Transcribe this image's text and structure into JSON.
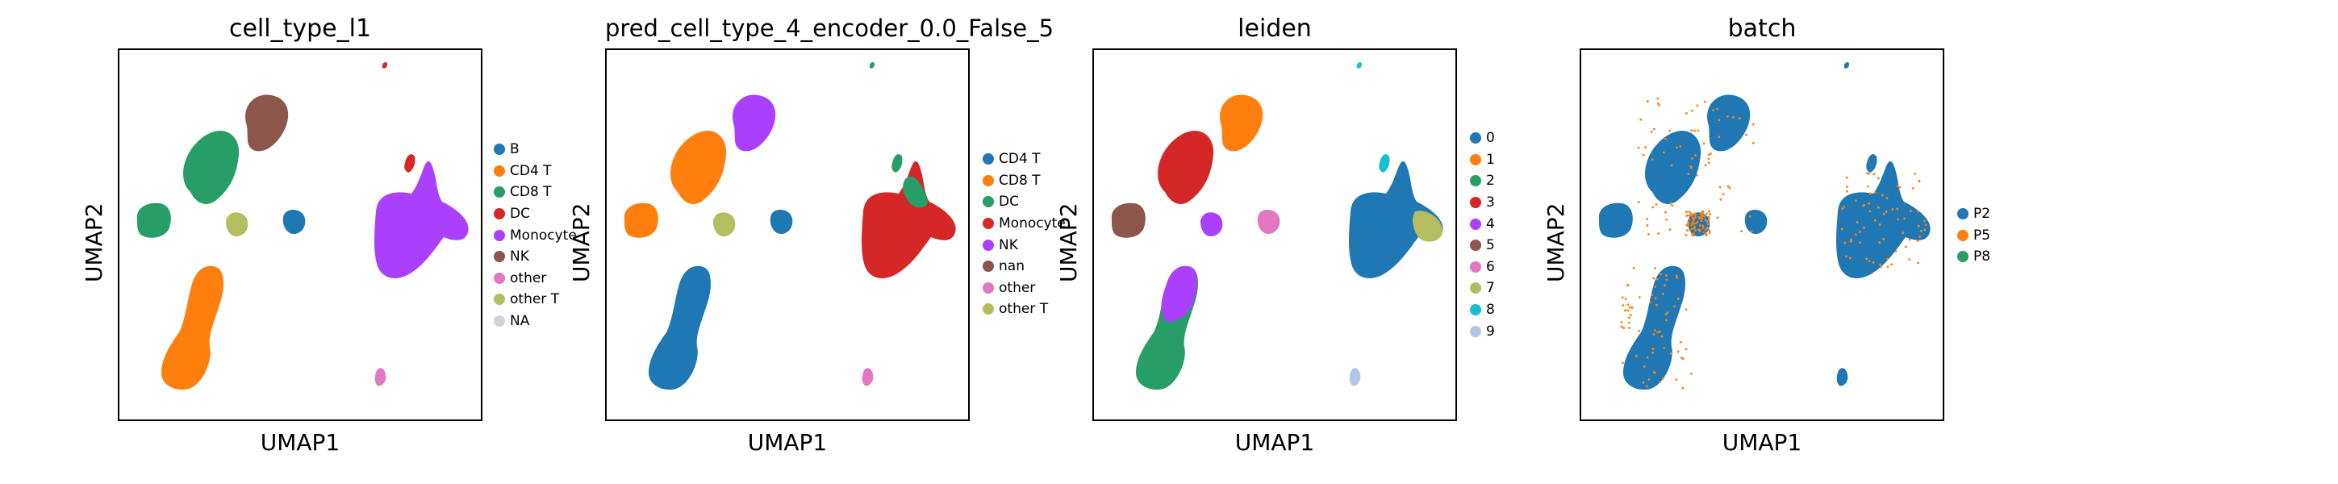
{
  "chart_data": [
    {
      "type": "scatter",
      "title": "cell_type_l1",
      "xlabel": "UMAP1",
      "ylabel": "UMAP2",
      "legend": [
        {
          "label": "B",
          "color": "#1f77b4"
        },
        {
          "label": "CD4 T",
          "color": "#ff7f0e"
        },
        {
          "label": "CD8 T",
          "color": "#279e68"
        },
        {
          "label": "DC",
          "color": "#d62728"
        },
        {
          "label": "Monocyte",
          "color": "#aa40fc"
        },
        {
          "label": "NK",
          "color": "#8c564b"
        },
        {
          "label": "other",
          "color": "#e377c2"
        },
        {
          "label": "other T",
          "color": "#b5bd61"
        },
        {
          "label": "NA",
          "color": "#d3d3d3"
        }
      ],
      "legend_position": "right",
      "clusters": [
        {
          "region": "upper-center-left",
          "category": "CD8 T"
        },
        {
          "region": "upper-center",
          "category": "NK"
        },
        {
          "region": "far-left",
          "category": "CD8 T"
        },
        {
          "region": "center",
          "category": "other T"
        },
        {
          "region": "center-right small",
          "category": "B"
        },
        {
          "region": "right large",
          "category": "Monocyte"
        },
        {
          "region": "right top spike",
          "category": "DC"
        },
        {
          "region": "lower-left",
          "category": "CD4 T"
        },
        {
          "region": "bottom-right small",
          "category": "other"
        }
      ]
    },
    {
      "type": "scatter",
      "title": "pred_cell_type_4_encoder_0.0_False_5",
      "xlabel": "UMAP1",
      "ylabel": "UMAP2",
      "legend": [
        {
          "label": "CD4 T",
          "color": "#1f77b4"
        },
        {
          "label": "CD8 T",
          "color": "#ff7f0e"
        },
        {
          "label": "DC",
          "color": "#279e68"
        },
        {
          "label": "Monocyte",
          "color": "#d62728"
        },
        {
          "label": "NK",
          "color": "#aa40fc"
        },
        {
          "label": "nan",
          "color": "#8c564b"
        },
        {
          "label": "other",
          "color": "#e377c2"
        },
        {
          "label": "other T",
          "color": "#b5bd61"
        }
      ],
      "legend_position": "right"
    },
    {
      "type": "scatter",
      "title": "leiden",
      "xlabel": "UMAP1",
      "ylabel": "UMAP2",
      "legend": [
        {
          "label": "0",
          "color": "#1f77b4"
        },
        {
          "label": "1",
          "color": "#ff7f0e"
        },
        {
          "label": "2",
          "color": "#279e68"
        },
        {
          "label": "3",
          "color": "#d62728"
        },
        {
          "label": "4",
          "color": "#aa40fc"
        },
        {
          "label": "5",
          "color": "#8c564b"
        },
        {
          "label": "6",
          "color": "#e377c2"
        },
        {
          "label": "7",
          "color": "#b5bd61"
        },
        {
          "label": "8",
          "color": "#17becf"
        },
        {
          "label": "9",
          "color": "#aec7e8"
        }
      ],
      "legend_position": "right"
    },
    {
      "type": "scatter",
      "title": "batch",
      "xlabel": "UMAP1",
      "ylabel": "UMAP2",
      "legend": [
        {
          "label": "P2",
          "color": "#1f77b4"
        },
        {
          "label": "P5",
          "color": "#ff7f0e"
        },
        {
          "label": "P8",
          "color": "#279e68"
        }
      ],
      "legend_position": "right"
    }
  ]
}
